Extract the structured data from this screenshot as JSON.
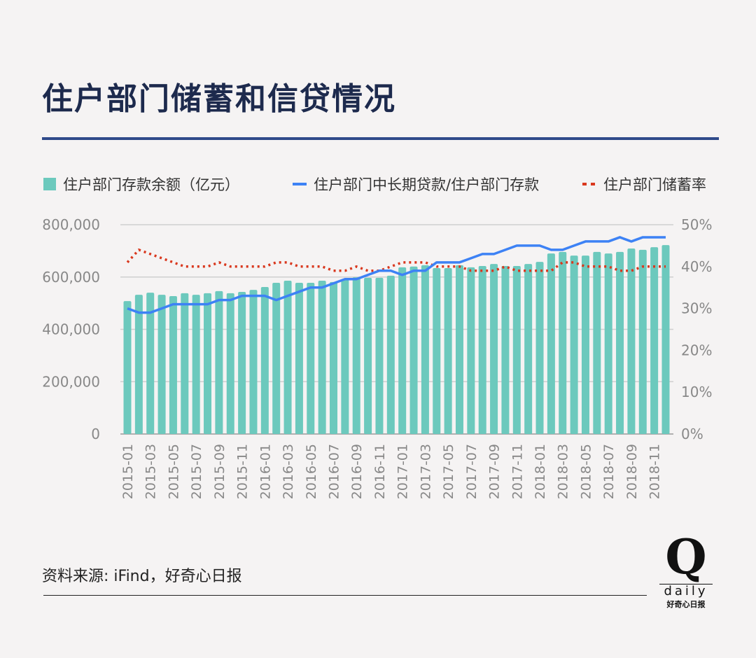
{
  "title": "住户部门储蓄和信贷情况",
  "source": "资料来源: iFind，好奇心日报",
  "logo": {
    "mark": "Q",
    "word": "daily",
    "cn": "好奇心日报"
  },
  "colors": {
    "bars": "#6cc9bd",
    "line": "#3d82f5",
    "dotted": "#d9381e",
    "title": "#1d2a4d",
    "rule": "#2f4a8a"
  },
  "chart_data": {
    "type": "bar+line",
    "title": "住户部门储蓄和信贷情况",
    "legend_position": "top",
    "grid": true,
    "categories": [
      "2015-01",
      "2015-02",
      "2015-03",
      "2015-04",
      "2015-05",
      "2015-06",
      "2015-07",
      "2015-08",
      "2015-09",
      "2015-10",
      "2015-11",
      "2015-12",
      "2016-01",
      "2016-02",
      "2016-03",
      "2016-04",
      "2016-05",
      "2016-06",
      "2016-07",
      "2016-08",
      "2016-09",
      "2016-10",
      "2016-11",
      "2016-12",
      "2017-01",
      "2017-02",
      "2017-03",
      "2017-04",
      "2017-05",
      "2017-06",
      "2017-07",
      "2017-08",
      "2017-09",
      "2017-10",
      "2017-11",
      "2017-12",
      "2018-01",
      "2018-02",
      "2018-03",
      "2018-04",
      "2018-05",
      "2018-06",
      "2018-07",
      "2018-08",
      "2018-09",
      "2018-10",
      "2018-11",
      "2018-12"
    ],
    "x_tick_labels": [
      "2015-01",
      "2015-03",
      "2015-05",
      "2015-07",
      "2015-09",
      "2015-11",
      "2016-01",
      "2016-03",
      "2016-05",
      "2016-07",
      "2016-09",
      "2016-11",
      "2017-01",
      "2017-03",
      "2017-05",
      "2017-07",
      "2017-09",
      "2017-11",
      "2018-01",
      "2018-03",
      "2018-05",
      "2018-07",
      "2018-09",
      "2018-11"
    ],
    "y_left": {
      "ylim": [
        0,
        800000
      ],
      "ticks": [
        "0",
        "200,000",
        "400,000",
        "600,000",
        "800,000"
      ]
    },
    "y_right": {
      "ylim": [
        0,
        50
      ],
      "ticks": [
        "0%",
        "10%",
        "20%",
        "30%",
        "40%",
        "50%"
      ]
    },
    "series": [
      {
        "name": "住户部门存款余额（亿元）",
        "type": "bar",
        "axis": "left",
        "values": [
          508000,
          532000,
          540000,
          532000,
          527000,
          538000,
          532000,
          538000,
          546000,
          538000,
          543000,
          551000,
          562000,
          578000,
          586000,
          578000,
          578000,
          586000,
          581000,
          591000,
          599000,
          597000,
          597000,
          605000,
          637000,
          640000,
          645000,
          634000,
          634000,
          645000,
          637000,
          642000,
          650000,
          642000,
          642000,
          650000,
          658000,
          690000,
          696000,
          682000,
          682000,
          696000,
          690000,
          696000,
          709000,
          704000,
          714000,
          722000
        ]
      },
      {
        "name": "住户部门中长期贷款/住户部门存款",
        "type": "line",
        "axis": "right",
        "values": [
          30,
          29,
          29,
          30,
          31,
          31,
          31,
          31,
          32,
          32,
          33,
          33,
          33,
          32,
          33,
          34,
          35,
          35,
          36,
          37,
          37,
          38,
          39,
          39,
          38,
          39,
          39,
          41,
          41,
          41,
          42,
          43,
          43,
          44,
          45,
          45,
          45,
          44,
          44,
          45,
          46,
          46,
          46,
          47,
          46,
          47,
          47,
          47
        ]
      },
      {
        "name": "住户部门储蓄率",
        "type": "dotted-line",
        "axis": "right",
        "values": [
          41,
          44,
          43,
          42,
          41,
          40,
          40,
          40,
          41,
          40,
          40,
          40,
          40,
          41,
          41,
          40,
          40,
          40,
          39,
          39,
          40,
          39,
          39,
          40,
          41,
          41,
          41,
          40,
          40,
          40,
          39,
          39,
          39,
          40,
          39,
          39,
          39,
          39,
          41,
          41,
          40,
          40,
          40,
          39,
          39,
          40,
          40,
          40
        ]
      }
    ]
  }
}
